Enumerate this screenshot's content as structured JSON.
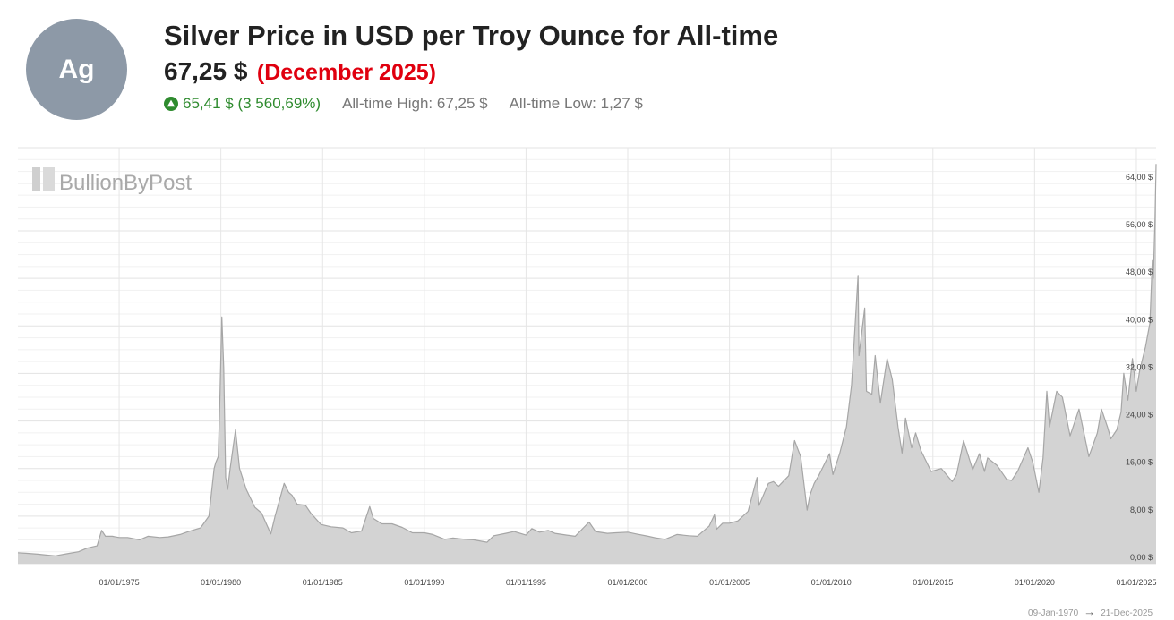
{
  "badge": {
    "symbol": "Ag",
    "color": "#8d99a7"
  },
  "header": {
    "title": "Silver Price in USD per Troy Ounce for All-time",
    "price": "67,25 $",
    "period": "(December 2025)",
    "change": "65,41 $ (3 560,69%)",
    "change_icon": "triangle-up-circle-icon",
    "ath": "All-time High: 67,25 $",
    "atl": "All-time Low: 1,27 $"
  },
  "watermark": "BullionByPost",
  "range": {
    "start": "09-Jan-1970",
    "arrow": "→",
    "end": "21-Dec-2025"
  },
  "colors": {
    "accent_red": "#e0000f",
    "up_green": "#2e8b2e",
    "area_fill": "#d3d3d3",
    "area_line": "#a6a6a6"
  },
  "chart_data": {
    "type": "area",
    "title": "",
    "xlabel": "",
    "ylabel": "",
    "grid": true,
    "y_axis_side": "right",
    "ylim": [
      0,
      70
    ],
    "xlim": [
      "1970-01-09",
      "2025-12-21"
    ],
    "y_ticks": [
      "0,00 $",
      "8,00 $",
      "16,00 $",
      "24,00 $",
      "32,00 $",
      "40,00 $",
      "48,00 $",
      "56,00 $",
      "64,00 $"
    ],
    "y_tick_values": [
      0,
      8,
      16,
      24,
      32,
      40,
      48,
      56,
      64
    ],
    "x_ticks": [
      "01/01/1975",
      "01/01/1980",
      "01/01/1985",
      "01/01/1990",
      "01/01/1995",
      "01/01/2000",
      "01/01/2005",
      "01/01/2010",
      "01/01/2015",
      "01/01/2020",
      "01/01/2025"
    ],
    "x_tick_dates": [
      "1975-01-01",
      "1980-01-01",
      "1985-01-01",
      "1990-01-01",
      "1995-01-01",
      "2000-01-01",
      "2005-01-01",
      "2010-01-01",
      "2015-01-01",
      "2020-01-01",
      "2025-01-01"
    ],
    "series": [
      {
        "points": [
          [
            "1970-01-09",
            1.84
          ],
          [
            "1970-06-01",
            1.75
          ],
          [
            "1971-01-01",
            1.6
          ],
          [
            "1971-06-01",
            1.45
          ],
          [
            "1971-11-15",
            1.3
          ],
          [
            "1972-01-01",
            1.4
          ],
          [
            "1972-06-01",
            1.65
          ],
          [
            "1973-01-01",
            2.0
          ],
          [
            "1973-06-01",
            2.6
          ],
          [
            "1973-12-01",
            3.0
          ],
          [
            "1974-02-20",
            5.6
          ],
          [
            "1974-05-01",
            4.6
          ],
          [
            "1974-09-01",
            4.6
          ],
          [
            "1975-01-01",
            4.4
          ],
          [
            "1975-06-01",
            4.4
          ],
          [
            "1976-01-01",
            4.0
          ],
          [
            "1976-06-01",
            4.6
          ],
          [
            "1977-01-01",
            4.4
          ],
          [
            "1977-06-01",
            4.5
          ],
          [
            "1978-01-01",
            4.9
          ],
          [
            "1978-06-01",
            5.4
          ],
          [
            "1979-01-01",
            6.0
          ],
          [
            "1979-06-01",
            8.0
          ],
          [
            "1979-09-01",
            16.0
          ],
          [
            "1979-10-01",
            17.0
          ],
          [
            "1979-11-15",
            18.0
          ],
          [
            "1979-12-15",
            28.0
          ],
          [
            "1980-01-18",
            41.5
          ],
          [
            "1980-02-20",
            33.0
          ],
          [
            "1980-03-27",
            14.5
          ],
          [
            "1980-05-01",
            12.5
          ],
          [
            "1980-06-15",
            16.0
          ],
          [
            "1980-09-20",
            22.5
          ],
          [
            "1980-12-01",
            16.0
          ],
          [
            "1981-04-01",
            12.5
          ],
          [
            "1981-09-01",
            9.5
          ],
          [
            "1982-01-01",
            8.5
          ],
          [
            "1982-06-15",
            5.0
          ],
          [
            "1982-09-01",
            8.0
          ],
          [
            "1983-02-10",
            13.5
          ],
          [
            "1983-05-01",
            12.0
          ],
          [
            "1983-07-01",
            11.5
          ],
          [
            "1983-10-01",
            10.0
          ],
          [
            "1984-03-01",
            9.8
          ],
          [
            "1984-06-01",
            8.5
          ],
          [
            "1984-12-01",
            6.6
          ],
          [
            "1985-06-01",
            6.2
          ],
          [
            "1986-01-01",
            6.0
          ],
          [
            "1986-06-01",
            5.2
          ],
          [
            "1986-12-01",
            5.5
          ],
          [
            "1987-04-25",
            9.6
          ],
          [
            "1987-07-01",
            7.6
          ],
          [
            "1987-12-01",
            6.7
          ],
          [
            "1988-06-01",
            6.7
          ],
          [
            "1988-12-01",
            6.1
          ],
          [
            "1989-06-01",
            5.2
          ],
          [
            "1990-01-01",
            5.2
          ],
          [
            "1990-06-01",
            4.9
          ],
          [
            "1991-01-01",
            4.1
          ],
          [
            "1991-06-01",
            4.3
          ],
          [
            "1992-01-01",
            4.1
          ],
          [
            "1992-06-01",
            4.0
          ],
          [
            "1993-02-01",
            3.6
          ],
          [
            "1993-06-01",
            4.7
          ],
          [
            "1994-01-01",
            5.1
          ],
          [
            "1994-06-01",
            5.4
          ],
          [
            "1995-01-01",
            4.8
          ],
          [
            "1995-04-15",
            5.9
          ],
          [
            "1995-09-01",
            5.3
          ],
          [
            "1996-02-01",
            5.6
          ],
          [
            "1996-06-01",
            5.1
          ],
          [
            "1997-01-01",
            4.8
          ],
          [
            "1997-06-01",
            4.6
          ],
          [
            "1998-02-05",
            7.0
          ],
          [
            "1998-06-01",
            5.4
          ],
          [
            "1999-01-01",
            5.1
          ],
          [
            "1999-06-01",
            5.2
          ],
          [
            "2000-01-01",
            5.3
          ],
          [
            "2000-06-01",
            5.0
          ],
          [
            "2001-01-01",
            4.6
          ],
          [
            "2001-06-01",
            4.3
          ],
          [
            "2001-11-01",
            4.1
          ],
          [
            "2002-06-01",
            4.9
          ],
          [
            "2003-01-01",
            4.7
          ],
          [
            "2003-06-01",
            4.6
          ],
          [
            "2004-01-01",
            6.3
          ],
          [
            "2004-04-05",
            8.2
          ],
          [
            "2004-05-15",
            5.8
          ],
          [
            "2004-09-01",
            6.8
          ],
          [
            "2005-01-01",
            6.8
          ],
          [
            "2005-06-01",
            7.2
          ],
          [
            "2005-12-01",
            8.8
          ],
          [
            "2006-05-10",
            14.5
          ],
          [
            "2006-06-15",
            9.8
          ],
          [
            "2006-12-01",
            13.5
          ],
          [
            "2007-03-01",
            13.8
          ],
          [
            "2007-06-01",
            13.0
          ],
          [
            "2007-12-01",
            14.8
          ],
          [
            "2008-03-15",
            20.7
          ],
          [
            "2008-07-01",
            18.0
          ],
          [
            "2008-10-25",
            9.0
          ],
          [
            "2008-12-15",
            11.5
          ],
          [
            "2009-03-01",
            13.5
          ],
          [
            "2009-06-01",
            15.0
          ],
          [
            "2009-12-01",
            18.5
          ],
          [
            "2010-02-01",
            15.0
          ],
          [
            "2010-06-01",
            18.5
          ],
          [
            "2010-10-01",
            23.0
          ],
          [
            "2011-01-01",
            30.0
          ],
          [
            "2011-04-28",
            48.5
          ],
          [
            "2011-05-15",
            35.0
          ],
          [
            "2011-08-25",
            43.0
          ],
          [
            "2011-09-26",
            29.0
          ],
          [
            "2012-01-01",
            28.5
          ],
          [
            "2012-03-01",
            35.0
          ],
          [
            "2012-06-01",
            27.0
          ],
          [
            "2012-10-01",
            34.5
          ],
          [
            "2013-01-01",
            31.0
          ],
          [
            "2013-04-15",
            23.0
          ],
          [
            "2013-06-25",
            18.6
          ],
          [
            "2013-08-28",
            24.5
          ],
          [
            "2013-12-15",
            19.5
          ],
          [
            "2014-02-25",
            22.0
          ],
          [
            "2014-06-01",
            19.0
          ],
          [
            "2014-12-01",
            15.5
          ],
          [
            "2015-06-01",
            16.0
          ],
          [
            "2015-12-15",
            13.8
          ],
          [
            "2016-03-01",
            15.0
          ],
          [
            "2016-07-05",
            20.7
          ],
          [
            "2016-12-15",
            15.8
          ],
          [
            "2017-04-15",
            18.5
          ],
          [
            "2017-07-15",
            15.5
          ],
          [
            "2017-09-10",
            17.8
          ],
          [
            "2018-03-01",
            16.5
          ],
          [
            "2018-08-15",
            14.2
          ],
          [
            "2018-11-15",
            14.0
          ],
          [
            "2019-03-01",
            15.5
          ],
          [
            "2019-09-04",
            19.5
          ],
          [
            "2019-12-01",
            17.0
          ],
          [
            "2020-03-18",
            12.0
          ],
          [
            "2020-06-01",
            17.8
          ],
          [
            "2020-08-07",
            29.0
          ],
          [
            "2020-09-25",
            23.0
          ],
          [
            "2021-02-01",
            29.0
          ],
          [
            "2021-05-15",
            28.0
          ],
          [
            "2021-09-30",
            21.5
          ],
          [
            "2022-03-07",
            26.0
          ],
          [
            "2022-09-01",
            18.0
          ],
          [
            "2023-02-01",
            22.0
          ],
          [
            "2023-04-15",
            26.0
          ],
          [
            "2023-08-01",
            23.0
          ],
          [
            "2023-10-01",
            21.0
          ],
          [
            "2024-01-15",
            22.5
          ],
          [
            "2024-04-01",
            25.5
          ],
          [
            "2024-05-20",
            32.0
          ],
          [
            "2024-08-01",
            27.5
          ],
          [
            "2024-10-22",
            34.5
          ],
          [
            "2024-12-31",
            29.0
          ],
          [
            "2025-03-01",
            32.5
          ],
          [
            "2025-06-15",
            36.5
          ],
          [
            "2025-09-01",
            40.5
          ],
          [
            "2025-10-15",
            51.0
          ],
          [
            "2025-11-01",
            48.0
          ],
          [
            "2025-12-01",
            58.0
          ],
          [
            "2025-12-21",
            67.25
          ]
        ]
      }
    ]
  }
}
